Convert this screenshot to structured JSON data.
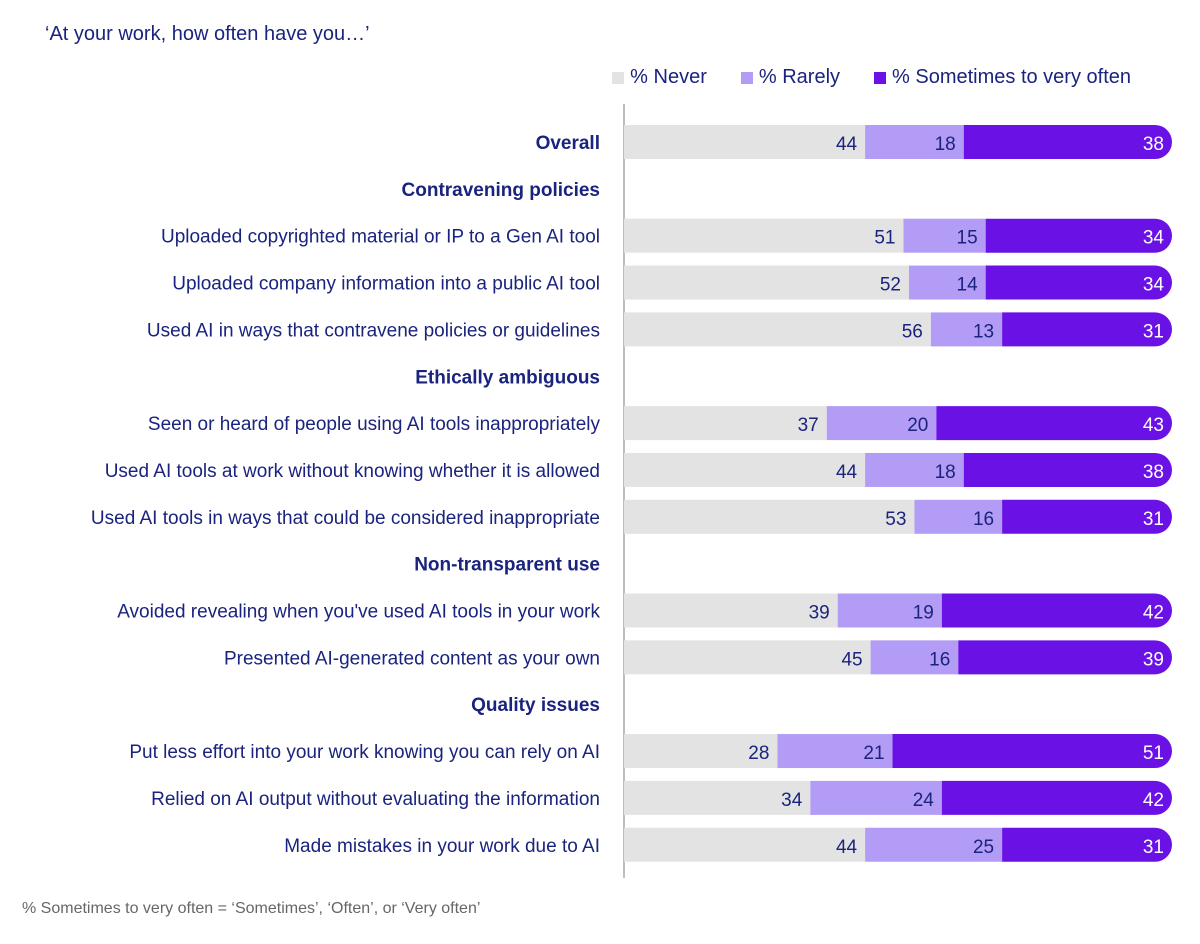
{
  "question": "‘At your work, how often have you…’",
  "footnote": "% Sometimes to very often = ‘Sometimes’, ‘Often’, or ‘Very often’",
  "colors": {
    "never": "#e3e3e3",
    "rarely": "#b39cf5",
    "sometimes": "#6a12e6",
    "text": "#1a237e",
    "axis": "#bdbdbd"
  },
  "chart_data": {
    "type": "bar",
    "orientation": "horizontal-stacked",
    "legend": {
      "position": "top-right"
    },
    "series": [
      {
        "name": "% Never",
        "color": "#e3e3e3"
      },
      {
        "name": "% Rarely",
        "color": "#b39cf5"
      },
      {
        "name": "% Sometimes to very often",
        "color": "#6a12e6"
      }
    ],
    "rows": [
      {
        "label": "Overall",
        "heading": true,
        "values": [
          44,
          18,
          38
        ]
      },
      {
        "label": "Contravening policies",
        "heading": true,
        "values": null
      },
      {
        "label": "Uploaded copyrighted material or IP to a Gen AI tool",
        "heading": false,
        "values": [
          51,
          15,
          34
        ]
      },
      {
        "label": "Uploaded company information into a public AI tool",
        "heading": false,
        "values": [
          52,
          14,
          34
        ]
      },
      {
        "label": "Used AI in ways that contravene policies or guidelines",
        "heading": false,
        "values": [
          56,
          13,
          31
        ]
      },
      {
        "label": "Ethically ambiguous",
        "heading": true,
        "values": null
      },
      {
        "label": "Seen or heard of people using AI tools inappropriately",
        "heading": false,
        "values": [
          37,
          20,
          43
        ]
      },
      {
        "label": "Used AI tools at work without knowing whether it is allowed",
        "heading": false,
        "values": [
          44,
          18,
          38
        ]
      },
      {
        "label": "Used AI tools in ways that could be considered inappropriate",
        "heading": false,
        "values": [
          53,
          16,
          31
        ]
      },
      {
        "label": "Non-transparent use",
        "heading": true,
        "values": null
      },
      {
        "label": "Avoided revealing when you've used AI tools in your work",
        "heading": false,
        "values": [
          39,
          19,
          42
        ]
      },
      {
        "label": "Presented AI-generated content as your own",
        "heading": false,
        "values": [
          45,
          16,
          39
        ]
      },
      {
        "label": "Quality issues",
        "heading": true,
        "values": null
      },
      {
        "label": "Put less effort into your work knowing you can rely on AI",
        "heading": false,
        "values": [
          28,
          21,
          51
        ]
      },
      {
        "label": "Relied on AI output without evaluating the information",
        "heading": false,
        "values": [
          34,
          24,
          42
        ]
      },
      {
        "label": "Made mistakes in your work due to AI",
        "heading": false,
        "values": [
          44,
          25,
          31
        ]
      }
    ]
  }
}
